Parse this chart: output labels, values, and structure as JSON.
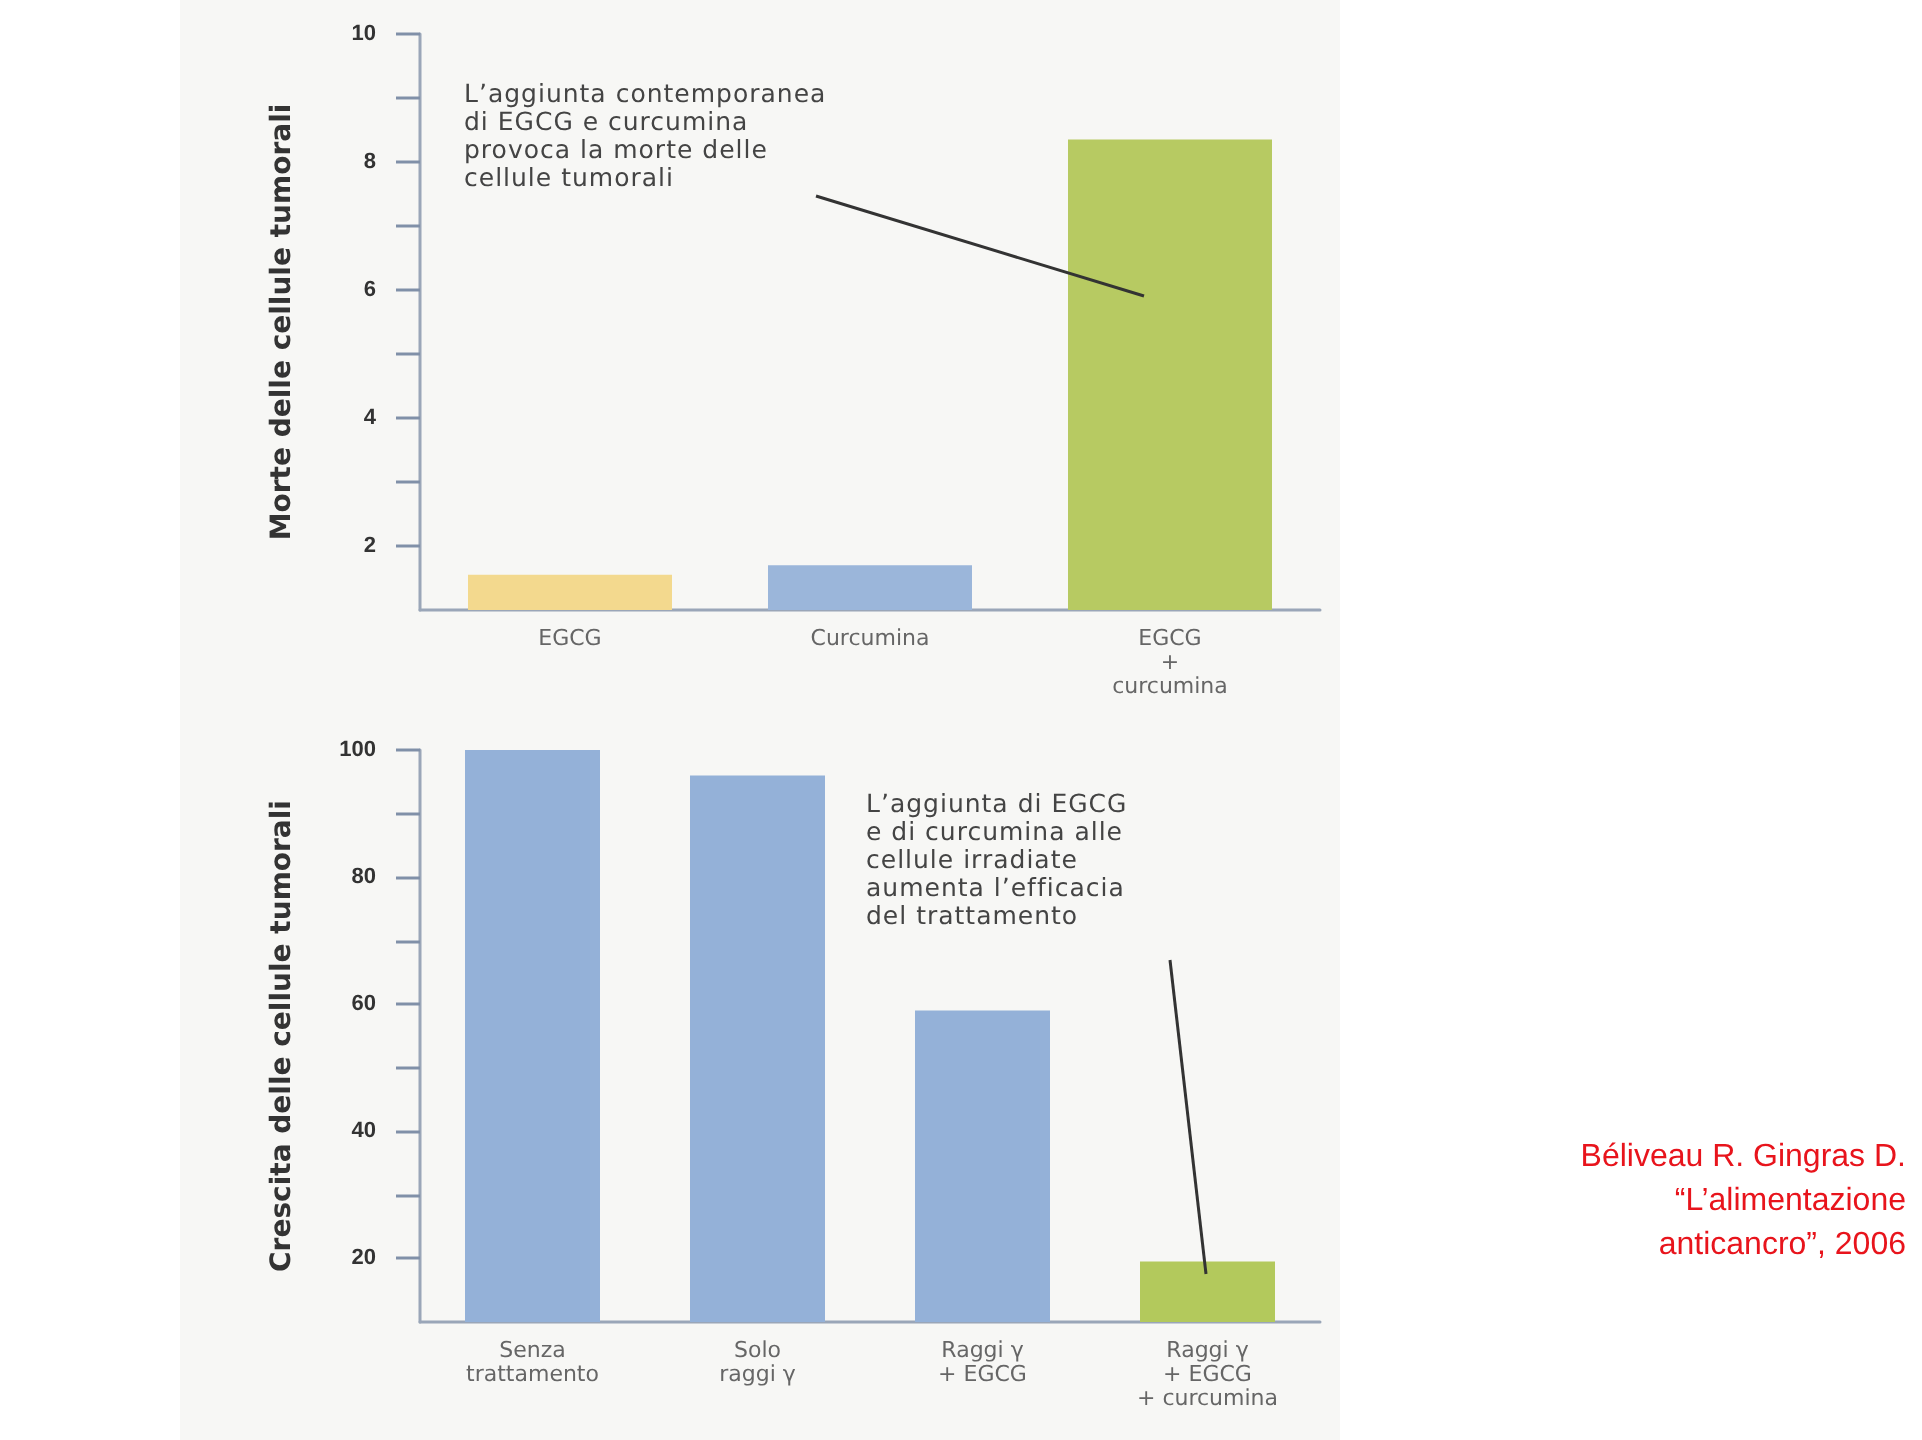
{
  "chart_data": [
    {
      "type": "bar",
      "ylabel": "Morte delle cellule tumorali",
      "categories": [
        "EGCG",
        "Curcumina",
        "EGCG\n+\ncurcumina"
      ],
      "values": [
        1.55,
        1.7,
        8.35
      ],
      "colors": [
        "#f3d98e",
        "#9bb6da",
        "#b7ca62"
      ],
      "ylim": [
        1,
        10
      ],
      "yticks": [
        2,
        {
          "value": 3,
          "label": null
        },
        4,
        {
          "value": 5,
          "label": null
        },
        6,
        {
          "value": 7,
          "label": null
        },
        8,
        {
          "value": 9,
          "label": null
        },
        10
      ],
      "annotations": [
        "L’aggiunta contemporanea\ndi EGCG e curcumina\nprovoca la morte delle\ncellule tumorali"
      ]
    },
    {
      "type": "bar",
      "ylabel": "Crescita delle cellule tumorali",
      "categories": [
        "Senza\ntrattamento",
        "Solo\nraggi γ",
        "Raggi γ\n+ EGCG",
        "Raggi γ\n+ EGCG\n+ curcumina"
      ],
      "values": [
        100,
        96,
        59,
        19.5
      ],
      "colors": [
        "#94b1d8",
        "#94b1d8",
        "#94b1d8",
        "#b3c95c"
      ],
      "ylim": [
        10,
        100
      ],
      "yticks": [
        20,
        {
          "value": 30,
          "label": null
        },
        40,
        {
          "value": 50,
          "label": null
        },
        60,
        {
          "value": 70,
          "label": null
        },
        80,
        {
          "value": 90,
          "label": null
        },
        {
          "value": 100,
          "label": "100"
        }
      ],
      "annotations": [
        "L’aggiunta di EGCG\ne di curcumina alle\ncellule irradiate\naumenta l’efficacia\ndel trattamento",
        "Béliveau R. Gingras D. “L’alimentazione anticancro”, 2006"
      ]
    }
  ]
}
